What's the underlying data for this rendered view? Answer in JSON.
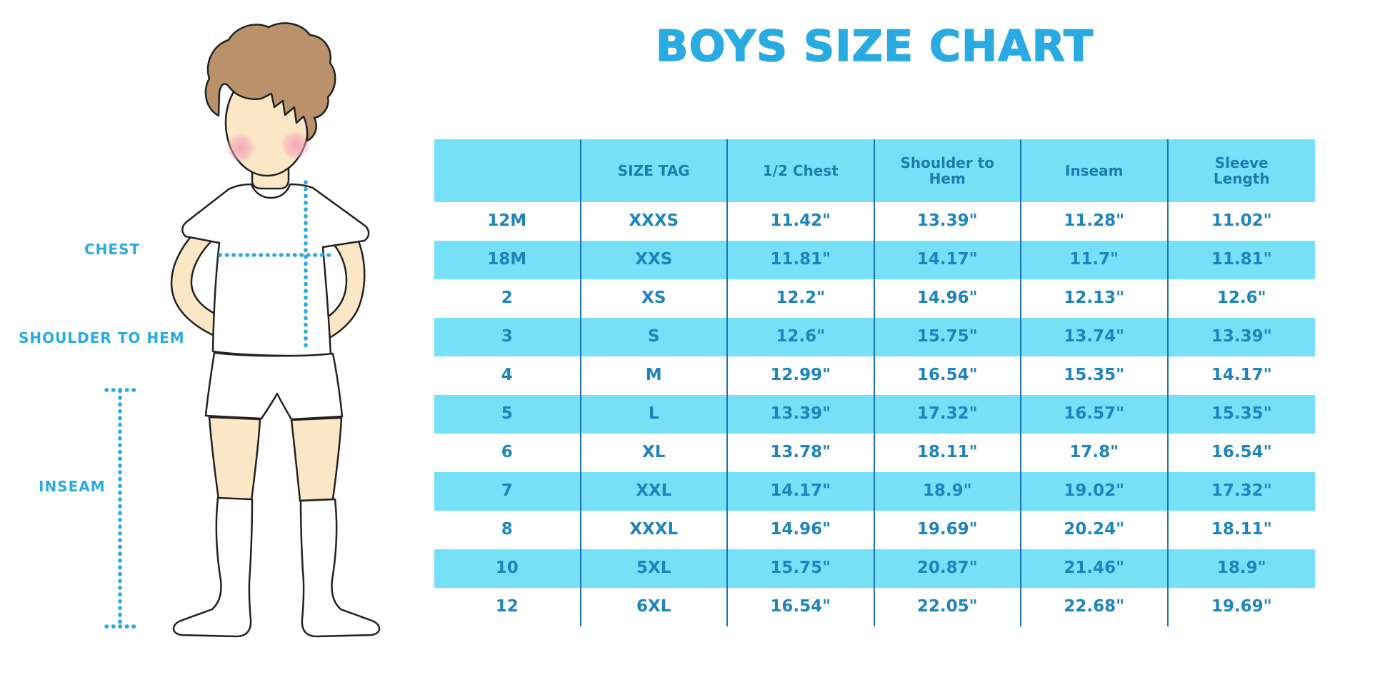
{
  "title": "BOYS SIZE CHART",
  "diagram": {
    "chest_label": "CHEST",
    "shoulder_to_hem_label": "SHOULDER TO HEM",
    "inseam_label": "INSEAM"
  },
  "chart_data": {
    "type": "table",
    "title": "BOYS SIZE CHART",
    "columns": [
      "",
      "SIZE TAG",
      "1/2 Chest",
      "Shoulder to Hem",
      "Inseam",
      "Sleeve Length"
    ],
    "rows": [
      [
        "12M",
        "XXXS",
        "11.42\"",
        "13.39\"",
        "11.28\"",
        "11.02\""
      ],
      [
        "18M",
        "XXS",
        "11.81\"",
        "14.17\"",
        "11.7\"",
        "11.81\""
      ],
      [
        "2",
        "XS",
        "12.2\"",
        "14.96\"",
        "12.13\"",
        "12.6\""
      ],
      [
        "3",
        "S",
        "12.6\"",
        "15.75\"",
        "13.74\"",
        "13.39\""
      ],
      [
        "4",
        "M",
        "12.99\"",
        "16.54\"",
        "15.35\"",
        "14.17\""
      ],
      [
        "5",
        "L",
        "13.39\"",
        "17.32\"",
        "16.57\"",
        "15.35\""
      ],
      [
        "6",
        "XL",
        "13.78\"",
        "18.11\"",
        "17.8\"",
        "16.54\""
      ],
      [
        "7",
        "XXL",
        "14.17\"",
        "18.9\"",
        "19.02\"",
        "17.32\""
      ],
      [
        "8",
        "XXXL",
        "14.96\"",
        "19.69\"",
        "20.24\"",
        "18.11\""
      ],
      [
        "10",
        "5XL",
        "15.75\"",
        "20.87\"",
        "21.46\"",
        "18.9\""
      ],
      [
        "12",
        "6XL",
        "16.54\"",
        "22.05\"",
        "22.68\"",
        "19.69\""
      ]
    ],
    "row_striping": "white / light-cyan alternating, starting white",
    "units": "inches"
  },
  "colors": {
    "accent": "#29ABE2",
    "row_fill": "#76E0F7",
    "divider": "#1C74B8",
    "cell_text": "#1E84BE",
    "header_text": "#1D7CAD",
    "hair": "#B9926B",
    "skin": "#FBE7C6",
    "blush": "#F2A3B8"
  }
}
